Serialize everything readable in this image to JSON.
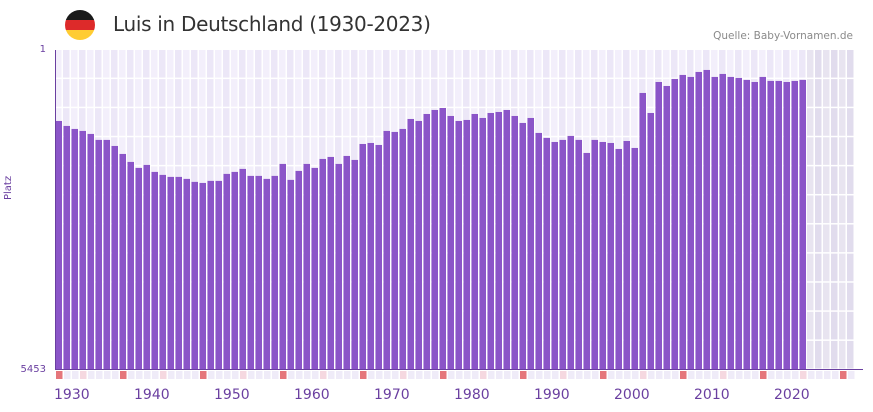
{
  "header": {
    "flag_icon": "germany-flag-icon",
    "flag_colors": [
      "#1a1a1a",
      "#dd2a2a",
      "#ffcc33"
    ],
    "title": "Luis in Deutschland (1930-2023)",
    "source": "Quelle: Baby-Vornamen.de"
  },
  "axis": {
    "y_top": "1",
    "y_bottom": "5453",
    "y_label": "Platz",
    "x_ticks": [
      "1930",
      "1940",
      "1950",
      "1960",
      "1970",
      "1980",
      "1990",
      "2000",
      "2010",
      "2020"
    ]
  },
  "colors": {
    "bar": "#8b55c8",
    "axis": "#6a3fa0",
    "grid_a": "#f3effb",
    "grid_b": "#ece7f7",
    "future_a": "#e8e4f0",
    "future_b": "#e1dced",
    "marker_decade": "#e5767b",
    "marker_half": "#f5d8e0",
    "marker_light": "#efebf8"
  },
  "chart_data": {
    "type": "bar",
    "title": "Luis in Deutschland (1930-2023)",
    "xlabel": "",
    "ylabel": "Platz",
    "y_inverted": true,
    "ylim": [
      5453,
      1
    ],
    "x_range": [
      1930,
      2029
    ],
    "grid": true,
    "categories": [
      1930,
      1931,
      1932,
      1933,
      1934,
      1935,
      1936,
      1937,
      1938,
      1939,
      1940,
      1941,
      1942,
      1943,
      1944,
      1945,
      1946,
      1947,
      1948,
      1949,
      1950,
      1951,
      1952,
      1953,
      1954,
      1955,
      1956,
      1957,
      1958,
      1959,
      1960,
      1961,
      1962,
      1963,
      1964,
      1965,
      1966,
      1967,
      1968,
      1969,
      1970,
      1971,
      1972,
      1973,
      1974,
      1975,
      1976,
      1977,
      1978,
      1979,
      1980,
      1981,
      1982,
      1983,
      1984,
      1985,
      1986,
      1987,
      1988,
      1989,
      1990,
      1991,
      1992,
      1993,
      1994,
      1995,
      1996,
      1997,
      1998,
      1999,
      2000,
      2001,
      2002,
      2003,
      2004,
      2005,
      2006,
      2007,
      2008,
      2009,
      2010,
      2011,
      2012,
      2013,
      2014,
      2015,
      2016,
      2017,
      2018,
      2019,
      2020,
      2021,
      2022,
      2023
    ],
    "values": [
      1210,
      1295,
      1346,
      1380,
      1431,
      1533,
      1533,
      1636,
      1772,
      1908,
      2010,
      1959,
      2078,
      2129,
      2163,
      2163,
      2197,
      2248,
      2266,
      2231,
      2231,
      2112,
      2078,
      2027,
      2146,
      2146,
      2197,
      2146,
      1942,
      2214,
      2061,
      1942,
      2010,
      1857,
      1823,
      1942,
      1806,
      1874,
      1602,
      1585,
      1619,
      1380,
      1397,
      1346,
      1176,
      1210,
      1091,
      1023,
      989,
      1125,
      1210,
      1193,
      1091,
      1159,
      1074,
      1057,
      1023,
      1125,
      1244,
      1159,
      1414,
      1499,
      1568,
      1533,
      1465,
      1533,
      1755,
      1533,
      1568,
      1585,
      1687,
      1551,
      1670,
      733,
      1074,
      546,
      614,
      494,
      426,
      460,
      375,
      341,
      460,
      409,
      460,
      477,
      511,
      546,
      460,
      528,
      528,
      546,
      528,
      511
    ]
  }
}
